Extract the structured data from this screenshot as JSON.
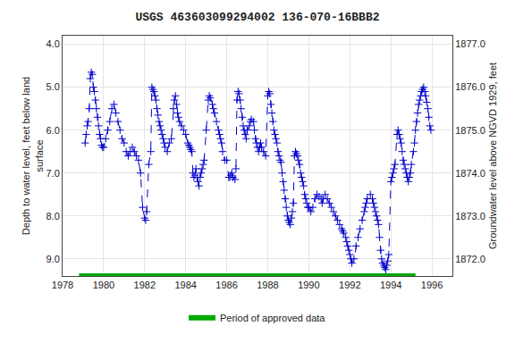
{
  "chart_data": {
    "type": "line",
    "title": "USGS 463603099294002 136-070-16BBB2",
    "y_label": "Depth to water level, feet below land\nsurface",
    "y2_label": "Groundwater level above NGVD 1929, feet",
    "x": [
      1979.1,
      1979.15,
      1979.2,
      1979.25,
      1979.3,
      1979.35,
      1979.4,
      1979.45,
      1979.5,
      1979.55,
      1979.6,
      1979.65,
      1979.7,
      1979.75,
      1979.8,
      1979.85,
      1979.9,
      1979.95,
      1980.0,
      1980.1,
      1980.2,
      1980.3,
      1980.4,
      1980.5,
      1980.6,
      1980.7,
      1980.8,
      1980.9,
      1981.0,
      1981.1,
      1981.2,
      1981.3,
      1981.4,
      1981.5,
      1981.6,
      1981.7,
      1981.8,
      1981.9,
      1982.0,
      1982.05,
      1982.1,
      1982.2,
      1982.3,
      1982.35,
      1982.4,
      1982.45,
      1982.5,
      1982.55,
      1982.6,
      1982.65,
      1982.7,
      1982.75,
      1982.8,
      1982.85,
      1982.9,
      1982.95,
      1983.0,
      1983.1,
      1983.2,
      1983.3,
      1983.4,
      1983.45,
      1983.5,
      1983.55,
      1983.6,
      1983.65,
      1983.7,
      1983.8,
      1983.9,
      1984.0,
      1984.1,
      1984.15,
      1984.2,
      1984.25,
      1984.3,
      1984.35,
      1984.4,
      1984.45,
      1984.5,
      1984.55,
      1984.6,
      1984.65,
      1984.7,
      1984.75,
      1984.8,
      1984.85,
      1984.9,
      1985.0,
      1985.1,
      1985.15,
      1985.2,
      1985.3,
      1985.35,
      1985.4,
      1985.5,
      1985.6,
      1985.65,
      1985.7,
      1985.75,
      1985.8,
      1985.9,
      1986.0,
      1986.1,
      1986.15,
      1986.2,
      1986.25,
      1986.3,
      1986.4,
      1986.45,
      1986.5,
      1986.55,
      1986.6,
      1986.65,
      1986.7,
      1986.75,
      1986.8,
      1986.85,
      1986.9,
      1986.95,
      1987.0,
      1987.1,
      1987.15,
      1987.2,
      1987.3,
      1987.35,
      1987.4,
      1987.45,
      1987.5,
      1987.55,
      1987.6,
      1987.65,
      1987.7,
      1987.8,
      1987.9,
      1988.0,
      1988.05,
      1988.1,
      1988.15,
      1988.2,
      1988.25,
      1988.3,
      1988.35,
      1988.4,
      1988.45,
      1988.5,
      1988.55,
      1988.6,
      1988.65,
      1988.7,
      1988.75,
      1988.8,
      1988.85,
      1988.9,
      1988.95,
      1989.0,
      1989.05,
      1989.1,
      1989.15,
      1989.2,
      1989.25,
      1989.3,
      1989.35,
      1989.4,
      1989.45,
      1989.5,
      1989.55,
      1989.6,
      1989.65,
      1989.7,
      1989.75,
      1989.8,
      1989.85,
      1989.9,
      1989.95,
      1990.0,
      1990.1,
      1990.2,
      1990.3,
      1990.4,
      1990.5,
      1990.6,
      1990.65,
      1990.7,
      1990.8,
      1990.9,
      1991.0,
      1991.1,
      1991.2,
      1991.3,
      1991.4,
      1991.5,
      1991.6,
      1991.65,
      1991.7,
      1991.8,
      1991.85,
      1991.9,
      1991.95,
      1992.0,
      1992.05,
      1992.1,
      1992.2,
      1992.3,
      1992.4,
      1992.5,
      1992.6,
      1992.7,
      1992.75,
      1992.8,
      1992.85,
      1993.0,
      1993.1,
      1993.15,
      1993.2,
      1993.25,
      1993.3,
      1993.35,
      1993.4,
      1993.45,
      1993.5,
      1993.55,
      1993.6,
      1993.65,
      1993.7,
      1993.75,
      1993.8,
      1993.85,
      1993.9,
      1994.0,
      1994.05,
      1994.1,
      1994.15,
      1994.2,
      1994.3,
      1994.35,
      1994.4,
      1994.45,
      1994.5,
      1994.55,
      1994.6,
      1994.65,
      1994.7,
      1994.75,
      1994.8,
      1994.85,
      1994.9,
      1994.95,
      1995.0,
      1995.1,
      1995.15,
      1995.2,
      1995.25,
      1995.3,
      1995.35,
      1995.4,
      1995.45,
      1995.5,
      1995.55,
      1995.6,
      1995.65,
      1995.7,
      1995.75,
      1995.8,
      1995.85,
      1995.9,
      1995.95
    ],
    "series": [
      {
        "type": "line",
        "color": "#0000CC",
        "marker": "+",
        "line_style": "dashed",
        "values": [
          6.3,
          6.1,
          5.9,
          5.8,
          5.5,
          4.8,
          4.65,
          4.7,
          5.0,
          5.1,
          5.3,
          5.5,
          5.7,
          5.9,
          6.1,
          6.2,
          6.35,
          6.4,
          6.4,
          6.2,
          6.0,
          5.8,
          5.5,
          5.4,
          5.6,
          5.8,
          6.0,
          6.2,
          6.3,
          6.5,
          6.6,
          6.5,
          6.4,
          6.5,
          6.6,
          6.7,
          7.0,
          7.8,
          8.05,
          8.1,
          7.9,
          6.8,
          6.5,
          5.0,
          5.05,
          5.1,
          5.2,
          5.3,
          5.5,
          5.65,
          5.8,
          5.9,
          6.0,
          6.1,
          6.2,
          6.3,
          6.4,
          6.5,
          6.3,
          6.2,
          5.5,
          5.3,
          5.2,
          5.4,
          5.6,
          5.7,
          5.8,
          5.9,
          6.0,
          6.1,
          6.3,
          6.35,
          6.4,
          6.45,
          6.5,
          7.0,
          7.1,
          7.05,
          6.9,
          7.1,
          7.2,
          7.3,
          7.1,
          7.0,
          6.9,
          6.8,
          6.7,
          6.0,
          5.3,
          5.2,
          5.25,
          5.4,
          5.5,
          5.6,
          5.8,
          6.0,
          6.1,
          6.2,
          6.3,
          6.5,
          6.7,
          6.7,
          7.1,
          7.1,
          7.05,
          7.0,
          7.1,
          7.15,
          6.9,
          5.3,
          5.1,
          5.15,
          5.3,
          5.5,
          5.7,
          5.9,
          6.0,
          6.1,
          6.2,
          6.0,
          5.9,
          5.8,
          5.75,
          5.8,
          6.0,
          6.2,
          6.3,
          6.4,
          6.5,
          6.4,
          6.3,
          6.4,
          6.5,
          6.6,
          5.2,
          5.1,
          5.15,
          5.4,
          5.6,
          5.8,
          6.0,
          6.1,
          6.2,
          6.3,
          6.5,
          6.6,
          6.7,
          6.75,
          7.0,
          7.2,
          7.4,
          7.6,
          7.8,
          8.0,
          8.1,
          8.15,
          8.2,
          8.05,
          7.9,
          7.7,
          6.6,
          6.5,
          6.55,
          6.6,
          6.7,
          6.8,
          7.0,
          7.1,
          7.2,
          7.3,
          7.5,
          7.6,
          7.7,
          7.8,
          7.8,
          7.9,
          7.8,
          7.6,
          7.5,
          7.55,
          7.6,
          7.7,
          7.6,
          7.5,
          7.6,
          7.7,
          7.8,
          7.9,
          8.0,
          8.1,
          8.2,
          8.3,
          8.35,
          8.4,
          8.5,
          8.6,
          8.7,
          8.8,
          8.9,
          9.0,
          9.1,
          9.0,
          8.7,
          8.5,
          8.3,
          8.1,
          7.9,
          7.8,
          7.7,
          7.6,
          7.5,
          7.6,
          7.7,
          7.8,
          7.9,
          8.0,
          8.1,
          8.2,
          8.5,
          8.8,
          9.0,
          9.1,
          9.15,
          9.2,
          9.25,
          9.15,
          9.05,
          8.9,
          7.2,
          7.1,
          7.0,
          6.9,
          6.8,
          6.1,
          6.0,
          6.1,
          6.2,
          6.3,
          6.5,
          6.7,
          6.8,
          6.9,
          7.0,
          7.1,
          7.2,
          7.1,
          7.0,
          6.8,
          6.5,
          6.3,
          6.0,
          5.8,
          5.6,
          5.4,
          5.3,
          5.2,
          5.1,
          5.05,
          5.0,
          5.1,
          5.2,
          5.35,
          5.5,
          5.7,
          5.9,
          6.0
        ]
      },
      {
        "name": "Period of approved data",
        "type": "span",
        "color": "#00AA00",
        "x": [
          1978.8,
          1995.2
        ],
        "values": [
          9.4,
          9.4
        ]
      }
    ],
    "xlim": [
      1978,
      1997
    ],
    "xticks": [
      1978,
      1980,
      1982,
      1984,
      1986,
      1988,
      1990,
      1992,
      1994,
      1996
    ],
    "ylim": [
      9.4,
      3.8
    ],
    "yticks": [
      {
        "value": 4.0,
        "label": "4.0"
      },
      {
        "value": 5.0,
        "label": "5.0"
      },
      {
        "value": 6.0,
        "label": "6.0"
      },
      {
        "value": 7.0,
        "label": "7.0"
      },
      {
        "value": 8.0,
        "label": "8.0"
      },
      {
        "value": 9.0,
        "label": "9.0"
      }
    ],
    "y2lim": [
      1871.6,
      1877.2
    ],
    "y2ticks": [
      {
        "value": 1877.0,
        "label": "1877.0"
      },
      {
        "value": 1876.0,
        "label": "1876.0"
      },
      {
        "value": 1875.0,
        "label": "1875.0"
      },
      {
        "value": 1874.0,
        "label": "1874.0"
      },
      {
        "value": 1873.0,
        "label": "1873.0"
      },
      {
        "value": 1872.0,
        "label": "1872.0"
      }
    ],
    "grid": true,
    "legend": "bottom"
  }
}
